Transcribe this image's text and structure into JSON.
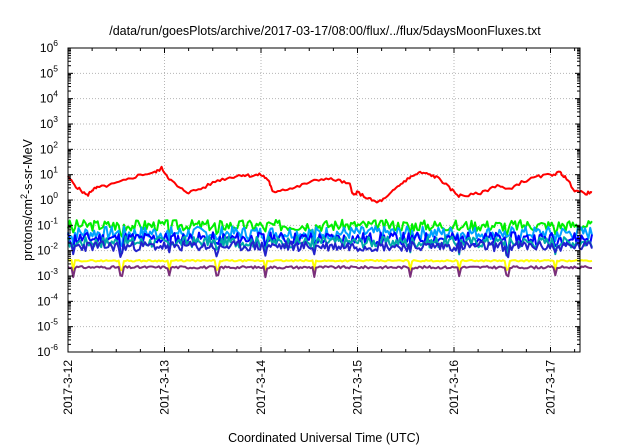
{
  "chart_data": {
    "type": "line",
    "title": "/data/run/goesPlots/archive/2017-03-17/08:00/flux/../flux/5daysMoonFluxes.txt",
    "xlabel": "Coordinated Universal Time (UTC)",
    "ylabel": {
      "prefix": "protons/cm",
      "sup": "2",
      "suffix": "-s-sr-MeV"
    },
    "x_tick_labels": [
      "2017-3-12",
      "2017-3-13",
      "2017-3-14",
      "2017-3-15",
      "2017-3-16",
      "2017-3-17"
    ],
    "x_day_range": [
      0,
      5.43
    ],
    "y_scale": "log",
    "y_tick_exponents": [
      -6,
      -5,
      -4,
      -3,
      -2,
      -1,
      0,
      1,
      2,
      3,
      4,
      5,
      6
    ],
    "ylim": [
      1e-06,
      1000000.0
    ],
    "grid": true,
    "legend": "none",
    "series": [
      {
        "color": "#ff0000",
        "x": [
          0,
          0.1,
          0.2,
          0.25,
          0.3,
          0.45,
          0.6,
          0.75,
          0.9,
          0.97,
          1.05,
          1.15,
          1.25,
          1.4,
          1.55,
          1.7,
          1.8,
          1.9,
          2.0,
          2.08,
          2.12,
          2.2,
          2.35,
          2.5,
          2.65,
          2.8,
          2.92,
          2.96,
          3.0,
          3.1,
          3.2,
          3.3,
          3.4,
          3.5,
          3.55,
          3.65,
          3.75,
          3.85,
          3.95,
          4.05,
          4.15,
          4.3,
          4.45,
          4.55,
          4.7,
          4.85,
          5.0,
          5.1,
          5.15,
          5.25,
          5.35,
          5.43
        ],
        "y": [
          8,
          3,
          1.5,
          2.5,
          3,
          4,
          6,
          10,
          12,
          18,
          7,
          3,
          2,
          3,
          6,
          8,
          10,
          9,
          10,
          6,
          2,
          2.5,
          3,
          5,
          7,
          6,
          4,
          1.5,
          2,
          1.2,
          0.8,
          1.2,
          3,
          6,
          8,
          12,
          10,
          7,
          3,
          1.5,
          1.5,
          2,
          4,
          2.5,
          5,
          8,
          10,
          12,
          8,
          2.5,
          1.8,
          2
        ]
      },
      {
        "color": "#00ee00",
        "level": 0.1,
        "amp": 0.22,
        "seed": 3
      },
      {
        "color": "#00a0ff",
        "level": 0.05,
        "amp": 0.26,
        "seed": 7
      },
      {
        "color": "#0000ff",
        "level": 0.03,
        "amp": 0.25,
        "seed": 11
      },
      {
        "color": "#00aaaa",
        "level": 0.022,
        "amp": 0.22,
        "seed": 17
      },
      {
        "color": "#2222cc",
        "level": 0.015,
        "amp": 0.2,
        "seed": 23
      },
      {
        "color": "#ffff00",
        "level": 0.004,
        "amp": 0.03,
        "seed": 29
      },
      {
        "color": "#7a2f7a",
        "level": 0.0022,
        "amp": 0.05,
        "seed": 31
      }
    ]
  }
}
